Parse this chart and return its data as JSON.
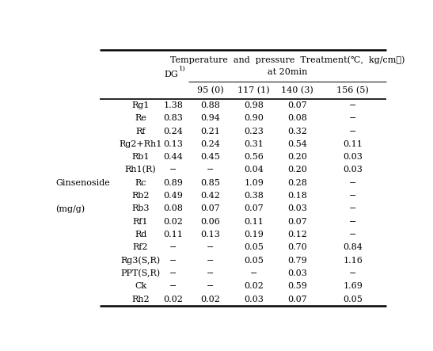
{
  "title_line1": "Temperature and pressure  Treatment(℃,  kg/cm㎡)",
  "title_line2": "at 20min",
  "col_header_dg": "DG",
  "col_headers": [
    "95 (0)",
    "117 (1)",
    "140 (3)",
    "156 (5)"
  ],
  "rows": [
    [
      "Rg1",
      "1.38",
      "0.88",
      "0.98",
      "0.07",
      "−"
    ],
    [
      "Re",
      "0.83",
      "0.94",
      "0.90",
      "0.08",
      "−"
    ],
    [
      "Rf",
      "0.24",
      "0.21",
      "0.23",
      "0.32",
      "−"
    ],
    [
      "Rg2+Rh1",
      "0.13",
      "0.24",
      "0.31",
      "0.54",
      "0.11"
    ],
    [
      "Rb1",
      "0.44",
      "0.45",
      "0.56",
      "0.20",
      "0.03"
    ],
    [
      "Rh1(R)",
      "−",
      "−",
      "0.04",
      "0.20",
      "0.03"
    ],
    [
      "Rc",
      "0.89",
      "0.85",
      "1.09",
      "0.28",
      "−"
    ],
    [
      "Rb2",
      "0.49",
      "0.42",
      "0.38",
      "0.18",
      "−"
    ],
    [
      "Rb3",
      "0.08",
      "0.07",
      "0.07",
      "0.03",
      "−"
    ],
    [
      "Rf1",
      "0.02",
      "0.06",
      "0.11",
      "0.07",
      "−"
    ],
    [
      "Rd",
      "0.11",
      "0.13",
      "0.19",
      "0.12",
      "−"
    ],
    [
      "Rf2",
      "−",
      "−",
      "0.05",
      "0.70",
      "0.84"
    ],
    [
      "Rg3(S,R)",
      "−",
      "−",
      "0.05",
      "0.79",
      "1.16"
    ],
    [
      "PPT(S,R)",
      "−",
      "−",
      "−",
      "0.03",
      "−"
    ],
    [
      "Ck",
      "−",
      "−",
      "0.02",
      "0.59",
      "1.69"
    ],
    [
      "Rh2",
      "0.02",
      "0.02",
      "0.03",
      "0.07",
      "0.05"
    ]
  ],
  "ginsenoside_row": 6,
  "mgperg_row": 8,
  "bg_color": "#ffffff",
  "text_color": "#000000",
  "line_color": "#000000",
  "font_size": 8.0,
  "small_font_size": 6.0
}
